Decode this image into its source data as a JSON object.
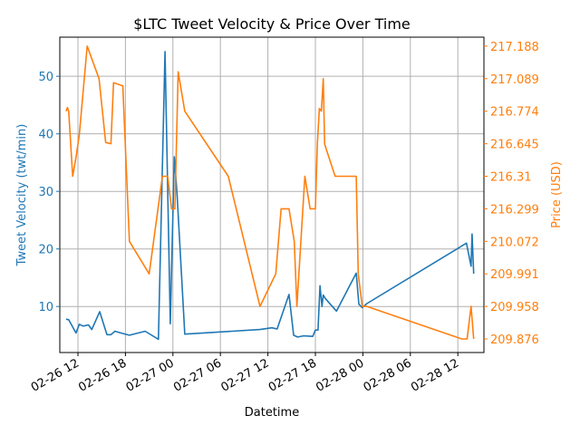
{
  "chart_data": {
    "type": "line",
    "title": "$LTC Tweet Velocity & Price Over Time",
    "xlabel": "Datetime",
    "ylabel_left": "Tweet Velocity (twt/min)",
    "ylabel_right": "Price (USD)",
    "grid": true,
    "colors": {
      "velocity": "#1f77b4",
      "price": "#ff7f0e",
      "grid": "#b0b0b0"
    },
    "x_ticks": [
      "02-26 12",
      "02-26 18",
      "02-27 00",
      "02-27 06",
      "02-27 12",
      "02-27 18",
      "02-28 00",
      "02-28 06",
      "02-28 12"
    ],
    "y_left_ticks": [
      10,
      20,
      30,
      40,
      50
    ],
    "y_left_range": [
      2,
      56.8
    ],
    "y_right_ticks": [
      "209.876",
      "209.958",
      "209.991",
      "210.072",
      "216.299",
      "216.31",
      "216.645",
      "216.774",
      "217.089",
      "217.188"
    ],
    "velocity_series": {
      "name": "",
      "x": [
        "02-26 10:30",
        "02-26 10:50",
        "02-26 11:45",
        "02-26 12:10",
        "02-26 12:40",
        "02-26 13:20",
        "02-26 13:45",
        "02-26 14:45",
        "02-26 15:40",
        "02-26 16:10",
        "02-26 16:40",
        "02-26 17:40",
        "02-26 18:30",
        "02-26 20:30",
        "02-26 22:10",
        "02-26 23:00",
        "02-26 23:40",
        "02-27 00:10",
        "02-27 00:30",
        "02-27 01:30",
        "02-27 11:00",
        "02-27 12:30",
        "02-27 13:10",
        "02-27 14:40",
        "02-27 15:15",
        "02-27 15:45",
        "02-27 16:30",
        "02-27 17:40",
        "02-27 18:00",
        "02-27 18:20",
        "02-27 18:35",
        "02-27 18:50",
        "02-27 19:00",
        "02-27 19:15",
        "02-27 20:40",
        "02-27 23:10",
        "02-27 23:30",
        "02-27 23:55",
        "02-28 00:30",
        "02-28 13:05",
        "02-28 13:40",
        "02-28 13:48",
        "02-28 14:00"
      ],
      "values": [
        7.8,
        7.7,
        5.4,
        6.9,
        6.6,
        6.8,
        6.0,
        9.1,
        5.1,
        5.1,
        5.7,
        5.3,
        5.0,
        5.7,
        4.3,
        54.3,
        7.0,
        36.0,
        30.0,
        5.2,
        6.0,
        6.3,
        6.1,
        12.1,
        5.0,
        4.7,
        4.9,
        4.8,
        5.9,
        5.9,
        13.6,
        10.0,
        12.0,
        11.4,
        9.2,
        15.8,
        10.4,
        9.8,
        10.5,
        21.0,
        17.0,
        22.6,
        15.7
      ]
    },
    "price_series": {
      "name": "",
      "x": [
        "02-26 10:30",
        "02-26 10:40",
        "02-26 10:50",
        "02-26 11:20",
        "02-26 11:45",
        "02-26 12:10",
        "02-26 13:10",
        "02-26 14:40",
        "02-26 15:30",
        "02-26 16:10",
        "02-26 16:30",
        "02-26 17:40",
        "02-26 18:30",
        "02-26 21:00",
        "02-26 22:40",
        "02-26 23:20",
        "02-26 23:50",
        "02-27 00:15",
        "02-27 00:40",
        "02-27 01:30",
        "02-27 07:00",
        "02-27 11:00",
        "02-27 13:00",
        "02-27 13:40",
        "02-27 14:40",
        "02-27 15:20",
        "02-27 15:40",
        "02-27 16:40",
        "02-27 17:20",
        "02-27 18:00",
        "02-27 18:15",
        "02-27 18:30",
        "02-27 18:45",
        "02-27 19:00",
        "02-27 19:10",
        "02-27 19:20",
        "02-27 20:30",
        "02-27 23:10",
        "02-27 23:25",
        "02-27 23:55",
        "02-28 00:30",
        "02-28 12:30",
        "02-28 13:10",
        "02-28 13:40",
        "02-28 14:00"
      ],
      "values": [
        216.774,
        216.81,
        216.774,
        216.31,
        216.5,
        216.68,
        217.188,
        217.089,
        216.65,
        216.645,
        217.05,
        217.02,
        210.072,
        209.991,
        216.31,
        216.31,
        216.299,
        216.299,
        217.11,
        216.774,
        216.31,
        209.958,
        209.991,
        216.299,
        216.299,
        210.072,
        209.958,
        216.31,
        216.299,
        216.299,
        216.645,
        216.8,
        216.774,
        217.089,
        216.645,
        216.6,
        216.31,
        216.31,
        209.991,
        209.958,
        209.958,
        209.876,
        209.876,
        209.958,
        209.876
      ]
    }
  }
}
